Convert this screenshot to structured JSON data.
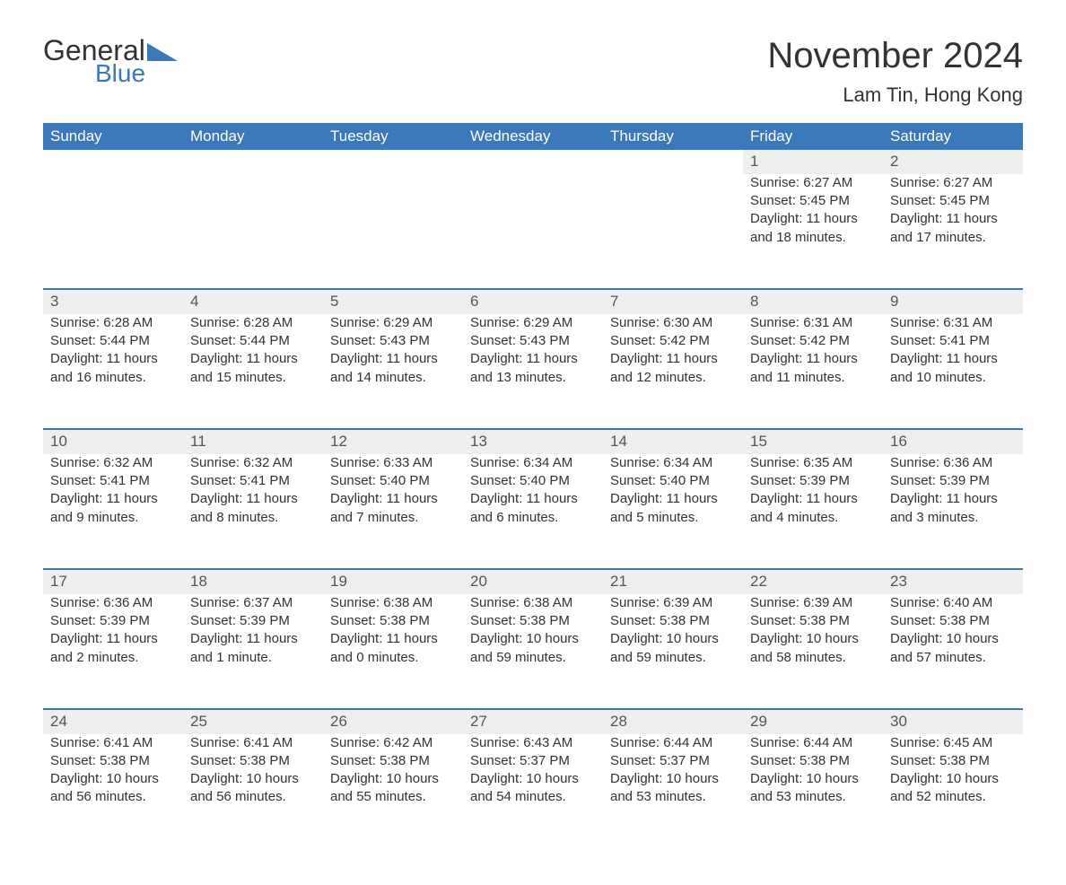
{
  "brand": {
    "part1": "General",
    "part2": "Blue",
    "brand_color": "#3a78b9"
  },
  "title": "November 2024",
  "location": "Lam Tin, Hong Kong",
  "colors": {
    "header_bg": "#3a78b9",
    "header_text": "#ffffff",
    "daynum_bg": "#eeeeee",
    "row_border": "#3a78b9",
    "body_text": "#333333",
    "page_bg": "#ffffff"
  },
  "weekdays": [
    "Sunday",
    "Monday",
    "Tuesday",
    "Wednesday",
    "Thursday",
    "Friday",
    "Saturday"
  ],
  "weeks": [
    [
      null,
      null,
      null,
      null,
      null,
      {
        "n": "1",
        "sr": "Sunrise: 6:27 AM",
        "ss": "Sunset: 5:45 PM",
        "dl1": "Daylight: 11 hours",
        "dl2": "and 18 minutes."
      },
      {
        "n": "2",
        "sr": "Sunrise: 6:27 AM",
        "ss": "Sunset: 5:45 PM",
        "dl1": "Daylight: 11 hours",
        "dl2": "and 17 minutes."
      }
    ],
    [
      {
        "n": "3",
        "sr": "Sunrise: 6:28 AM",
        "ss": "Sunset: 5:44 PM",
        "dl1": "Daylight: 11 hours",
        "dl2": "and 16 minutes."
      },
      {
        "n": "4",
        "sr": "Sunrise: 6:28 AM",
        "ss": "Sunset: 5:44 PM",
        "dl1": "Daylight: 11 hours",
        "dl2": "and 15 minutes."
      },
      {
        "n": "5",
        "sr": "Sunrise: 6:29 AM",
        "ss": "Sunset: 5:43 PM",
        "dl1": "Daylight: 11 hours",
        "dl2": "and 14 minutes."
      },
      {
        "n": "6",
        "sr": "Sunrise: 6:29 AM",
        "ss": "Sunset: 5:43 PM",
        "dl1": "Daylight: 11 hours",
        "dl2": "and 13 minutes."
      },
      {
        "n": "7",
        "sr": "Sunrise: 6:30 AM",
        "ss": "Sunset: 5:42 PM",
        "dl1": "Daylight: 11 hours",
        "dl2": "and 12 minutes."
      },
      {
        "n": "8",
        "sr": "Sunrise: 6:31 AM",
        "ss": "Sunset: 5:42 PM",
        "dl1": "Daylight: 11 hours",
        "dl2": "and 11 minutes."
      },
      {
        "n": "9",
        "sr": "Sunrise: 6:31 AM",
        "ss": "Sunset: 5:41 PM",
        "dl1": "Daylight: 11 hours",
        "dl2": "and 10 minutes."
      }
    ],
    [
      {
        "n": "10",
        "sr": "Sunrise: 6:32 AM",
        "ss": "Sunset: 5:41 PM",
        "dl1": "Daylight: 11 hours",
        "dl2": "and 9 minutes."
      },
      {
        "n": "11",
        "sr": "Sunrise: 6:32 AM",
        "ss": "Sunset: 5:41 PM",
        "dl1": "Daylight: 11 hours",
        "dl2": "and 8 minutes."
      },
      {
        "n": "12",
        "sr": "Sunrise: 6:33 AM",
        "ss": "Sunset: 5:40 PM",
        "dl1": "Daylight: 11 hours",
        "dl2": "and 7 minutes."
      },
      {
        "n": "13",
        "sr": "Sunrise: 6:34 AM",
        "ss": "Sunset: 5:40 PM",
        "dl1": "Daylight: 11 hours",
        "dl2": "and 6 minutes."
      },
      {
        "n": "14",
        "sr": "Sunrise: 6:34 AM",
        "ss": "Sunset: 5:40 PM",
        "dl1": "Daylight: 11 hours",
        "dl2": "and 5 minutes."
      },
      {
        "n": "15",
        "sr": "Sunrise: 6:35 AM",
        "ss": "Sunset: 5:39 PM",
        "dl1": "Daylight: 11 hours",
        "dl2": "and 4 minutes."
      },
      {
        "n": "16",
        "sr": "Sunrise: 6:36 AM",
        "ss": "Sunset: 5:39 PM",
        "dl1": "Daylight: 11 hours",
        "dl2": "and 3 minutes."
      }
    ],
    [
      {
        "n": "17",
        "sr": "Sunrise: 6:36 AM",
        "ss": "Sunset: 5:39 PM",
        "dl1": "Daylight: 11 hours",
        "dl2": "and 2 minutes."
      },
      {
        "n": "18",
        "sr": "Sunrise: 6:37 AM",
        "ss": "Sunset: 5:39 PM",
        "dl1": "Daylight: 11 hours",
        "dl2": "and 1 minute."
      },
      {
        "n": "19",
        "sr": "Sunrise: 6:38 AM",
        "ss": "Sunset: 5:38 PM",
        "dl1": "Daylight: 11 hours",
        "dl2": "and 0 minutes."
      },
      {
        "n": "20",
        "sr": "Sunrise: 6:38 AM",
        "ss": "Sunset: 5:38 PM",
        "dl1": "Daylight: 10 hours",
        "dl2": "and 59 minutes."
      },
      {
        "n": "21",
        "sr": "Sunrise: 6:39 AM",
        "ss": "Sunset: 5:38 PM",
        "dl1": "Daylight: 10 hours",
        "dl2": "and 59 minutes."
      },
      {
        "n": "22",
        "sr": "Sunrise: 6:39 AM",
        "ss": "Sunset: 5:38 PM",
        "dl1": "Daylight: 10 hours",
        "dl2": "and 58 minutes."
      },
      {
        "n": "23",
        "sr": "Sunrise: 6:40 AM",
        "ss": "Sunset: 5:38 PM",
        "dl1": "Daylight: 10 hours",
        "dl2": "and 57 minutes."
      }
    ],
    [
      {
        "n": "24",
        "sr": "Sunrise: 6:41 AM",
        "ss": "Sunset: 5:38 PM",
        "dl1": "Daylight: 10 hours",
        "dl2": "and 56 minutes."
      },
      {
        "n": "25",
        "sr": "Sunrise: 6:41 AM",
        "ss": "Sunset: 5:38 PM",
        "dl1": "Daylight: 10 hours",
        "dl2": "and 56 minutes."
      },
      {
        "n": "26",
        "sr": "Sunrise: 6:42 AM",
        "ss": "Sunset: 5:38 PM",
        "dl1": "Daylight: 10 hours",
        "dl2": "and 55 minutes."
      },
      {
        "n": "27",
        "sr": "Sunrise: 6:43 AM",
        "ss": "Sunset: 5:37 PM",
        "dl1": "Daylight: 10 hours",
        "dl2": "and 54 minutes."
      },
      {
        "n": "28",
        "sr": "Sunrise: 6:44 AM",
        "ss": "Sunset: 5:37 PM",
        "dl1": "Daylight: 10 hours",
        "dl2": "and 53 minutes."
      },
      {
        "n": "29",
        "sr": "Sunrise: 6:44 AM",
        "ss": "Sunset: 5:38 PM",
        "dl1": "Daylight: 10 hours",
        "dl2": "and 53 minutes."
      },
      {
        "n": "30",
        "sr": "Sunrise: 6:45 AM",
        "ss": "Sunset: 5:38 PM",
        "dl1": "Daylight: 10 hours",
        "dl2": "and 52 minutes."
      }
    ]
  ]
}
